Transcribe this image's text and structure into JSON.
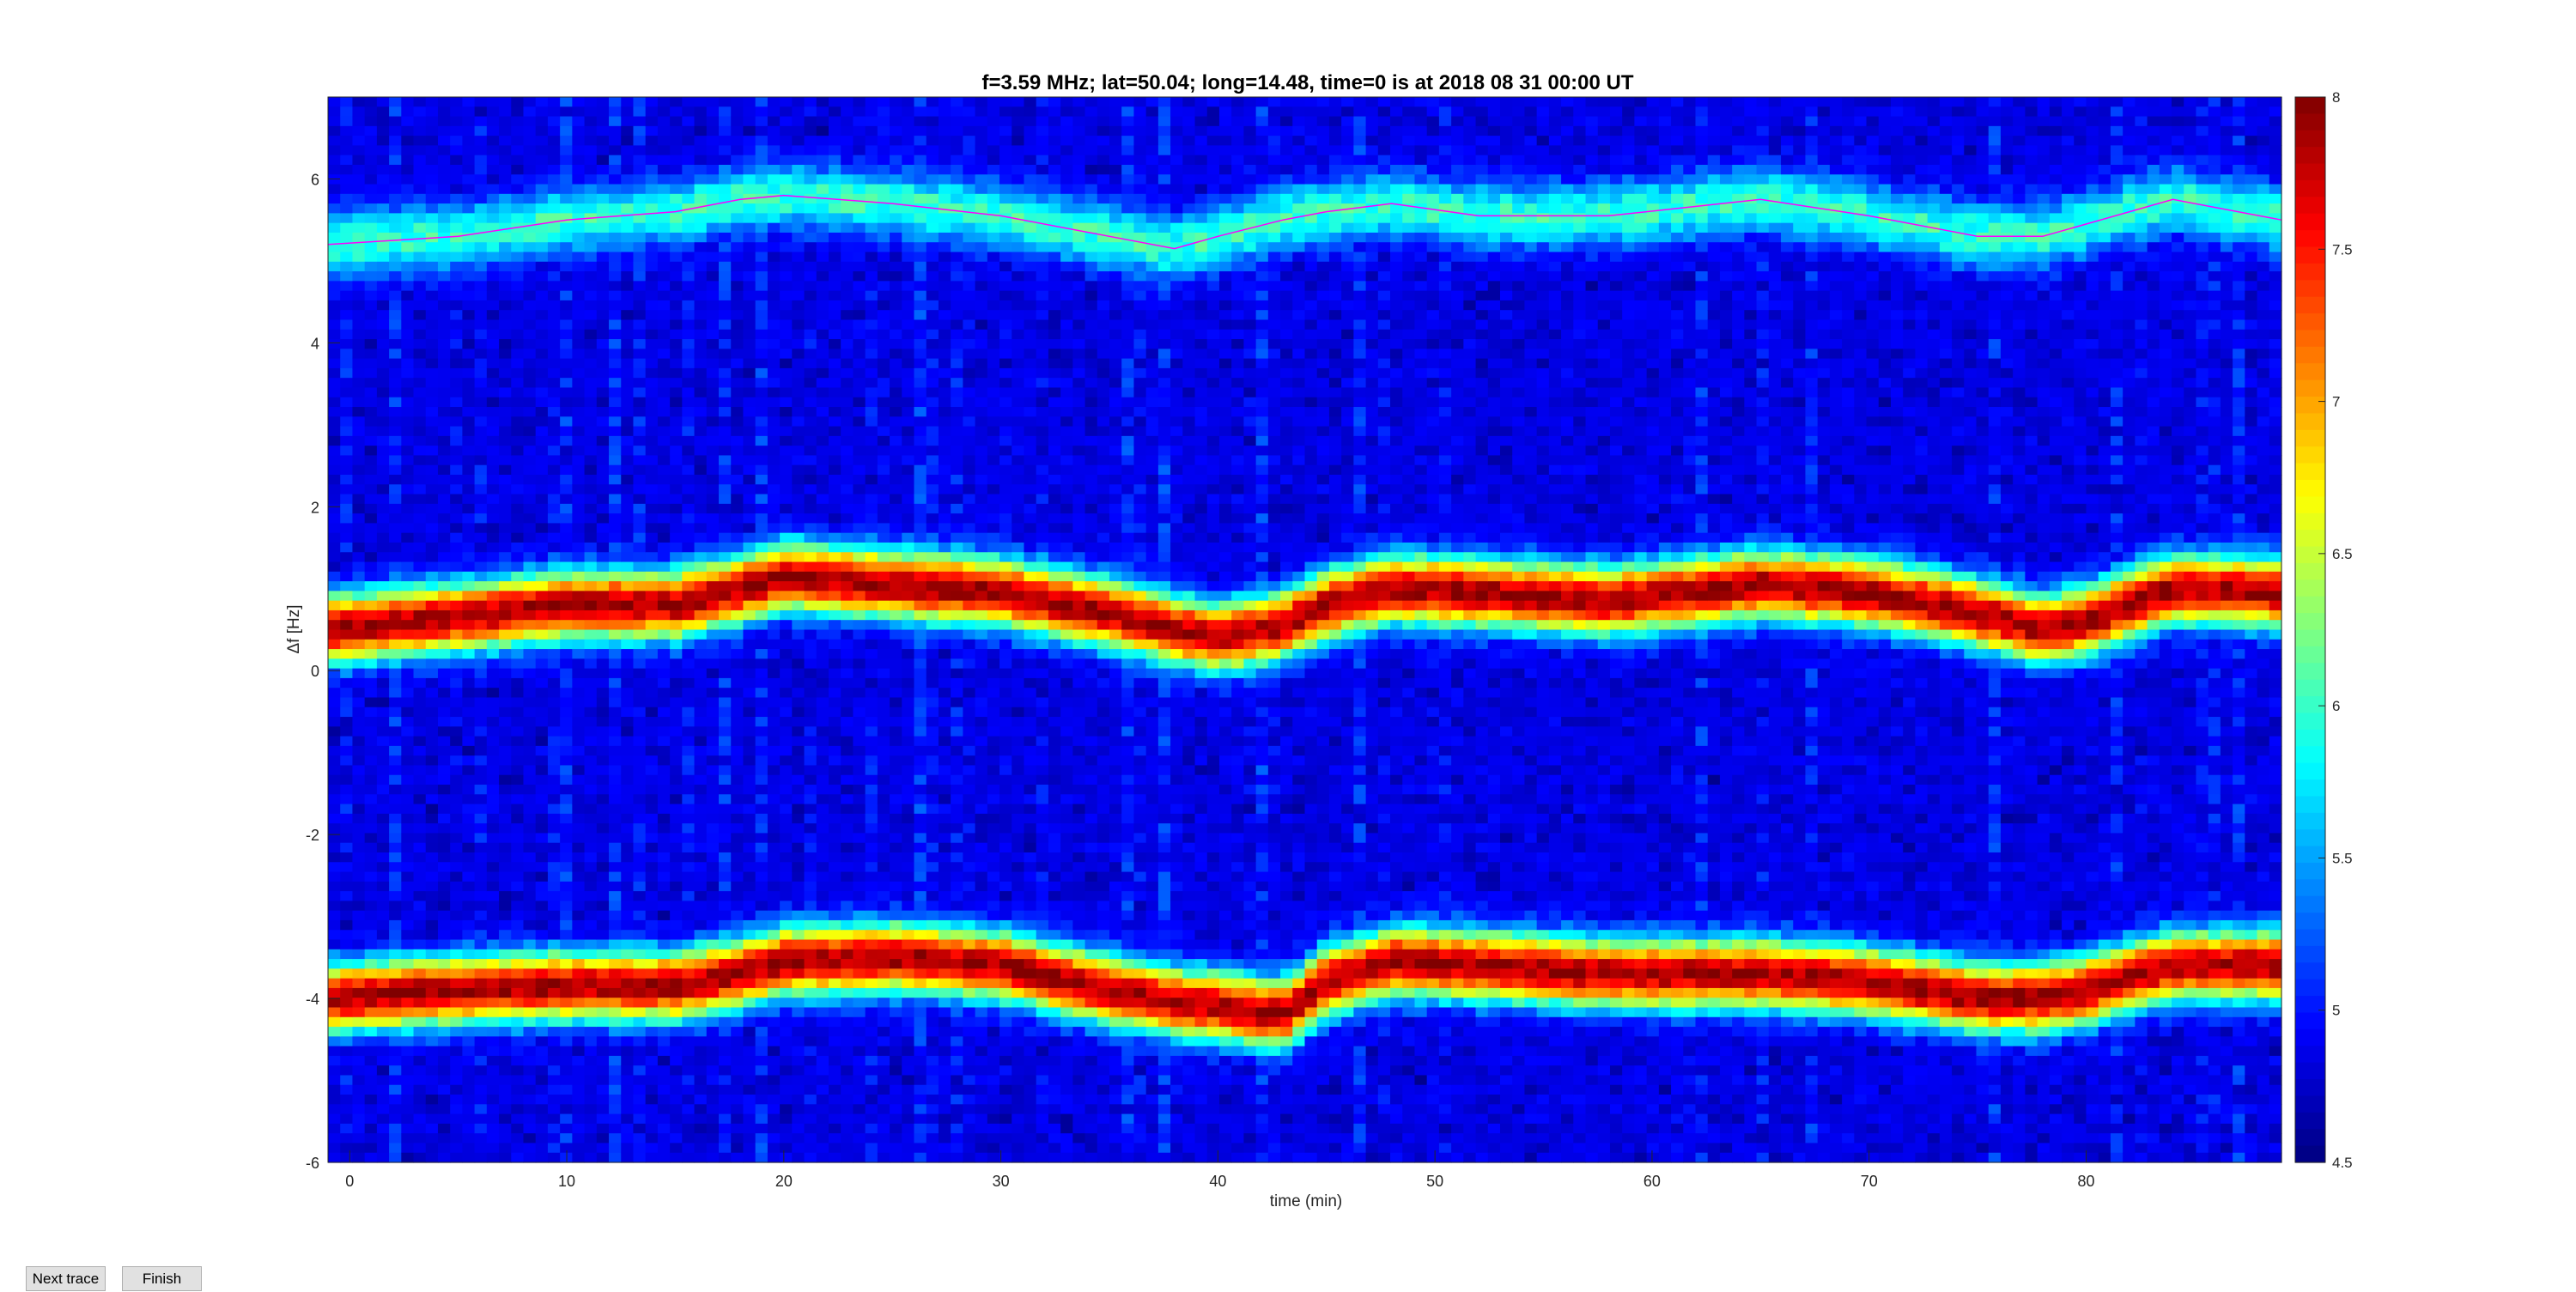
{
  "controls": {
    "next_label": "Next trace",
    "finish_label": "Finish"
  },
  "chart_data": {
    "type": "heatmap",
    "title": "f=3.59 MHz;  lat=50.04; long=14.48, time=0 is at 2018 08 31 00:00 UT",
    "xlabel": "time (min)",
    "ylabel": "Δf [Hz]",
    "xlim": [
      -1,
      89
    ],
    "ylim": [
      -6,
      7
    ],
    "xticks": [
      0,
      10,
      20,
      30,
      40,
      50,
      60,
      70,
      80
    ],
    "yticks": [
      -6,
      -4,
      -2,
      0,
      2,
      4,
      6
    ],
    "colorbar": {
      "colormap": "jet",
      "limits": [
        4.5,
        8
      ],
      "ticks": [
        4.5,
        5,
        5.5,
        6,
        6.5,
        7,
        7.5,
        8
      ]
    },
    "background_level": 4.7,
    "traces": [
      {
        "peak": 7.9,
        "x": [
          -1,
          5,
          10,
          15,
          18,
          20,
          25,
          30,
          35,
          38,
          40,
          43,
          45,
          48,
          52,
          58,
          65,
          70,
          75,
          78,
          80,
          84,
          89
        ],
        "y": [
          0.5,
          0.65,
          0.8,
          0.8,
          1.0,
          1.15,
          1.05,
          0.95,
          0.7,
          0.5,
          0.4,
          0.55,
          0.8,
          1.0,
          0.95,
          0.85,
          1.05,
          0.95,
          0.7,
          0.5,
          0.6,
          1.0,
          0.95
        ]
      },
      {
        "peak": 7.9,
        "x": [
          -1,
          5,
          10,
          15,
          18,
          20,
          25,
          30,
          35,
          38,
          40,
          43,
          45,
          48,
          52,
          58,
          65,
          70,
          75,
          78,
          80,
          84,
          89
        ],
        "y": [
          -4.0,
          -3.9,
          -3.85,
          -3.85,
          -3.7,
          -3.55,
          -3.5,
          -3.6,
          -3.9,
          -4.05,
          -4.1,
          -4.2,
          -3.8,
          -3.55,
          -3.6,
          -3.7,
          -3.7,
          -3.8,
          -4.0,
          -4.0,
          -3.9,
          -3.6,
          -3.6
        ]
      },
      {
        "peak": 6.0,
        "x": [
          -1,
          5,
          10,
          15,
          18,
          20,
          25,
          30,
          35,
          38,
          40,
          43,
          45,
          48,
          52,
          58,
          65,
          70,
          75,
          78,
          80,
          84,
          89
        ],
        "y": [
          5.2,
          5.3,
          5.5,
          5.6,
          5.75,
          5.8,
          5.7,
          5.55,
          5.3,
          5.15,
          5.3,
          5.5,
          5.6,
          5.7,
          5.55,
          5.55,
          5.75,
          5.55,
          5.3,
          5.3,
          5.45,
          5.75,
          5.5
        ]
      }
    ],
    "fitted_curve": {
      "color": "#ff00ff",
      "x": [
        -1,
        5,
        10,
        15,
        18,
        20,
        25,
        30,
        35,
        38,
        40,
        43,
        45,
        48,
        52,
        58,
        65,
        70,
        75,
        78,
        80,
        84,
        89
      ],
      "y": [
        5.2,
        5.3,
        5.5,
        5.6,
        5.75,
        5.8,
        5.7,
        5.55,
        5.3,
        5.15,
        5.3,
        5.5,
        5.6,
        5.7,
        5.55,
        5.55,
        5.75,
        5.55,
        5.3,
        5.3,
        5.45,
        5.75,
        5.5
      ]
    }
  }
}
